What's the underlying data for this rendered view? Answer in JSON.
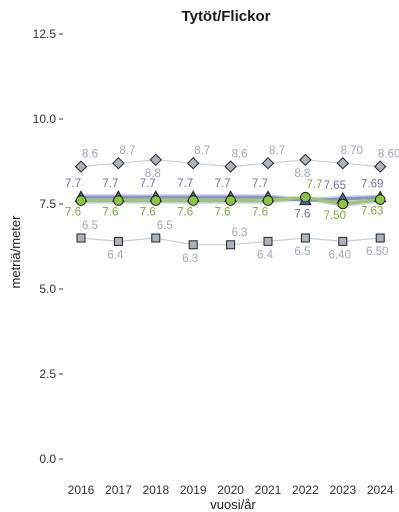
{
  "chart_data": {
    "type": "line",
    "title": "Tytöt/Flickor",
    "xlabel": "vuosi/år",
    "ylabel": "metriä/meter",
    "x": [
      "2016",
      "2017",
      "2018",
      "2019",
      "2020",
      "2021",
      "2022",
      "2023",
      "2024"
    ],
    "ylim": [
      0,
      12.5
    ],
    "yticks": [
      {
        "value": 0.0,
        "label": "0.0"
      },
      {
        "value": 2.5,
        "label": "2.5"
      },
      {
        "value": 5.0,
        "label": "5.0"
      },
      {
        "value": 7.5,
        "label": "7.5"
      },
      {
        "value": 10.0,
        "label": "10.0"
      },
      {
        "value": 12.5,
        "label": "12.5"
      }
    ],
    "grid": false,
    "legend": "none",
    "series": [
      {
        "marker": "diamond",
        "color": "#9aaab8",
        "line_color": "#c8cfd5",
        "values": [
          8.6,
          8.7,
          8.8,
          8.7,
          8.6,
          8.7,
          8.8,
          8.7,
          8.6
        ],
        "labels": [
          "8.6",
          "8.7",
          "8.8",
          "8.7",
          "8.6",
          "8.7",
          "8.8",
          "8.70",
          "8.60"
        ],
        "label_pos": [
          "above",
          "above",
          "below",
          "above",
          "above",
          "above",
          "below",
          "above",
          "above"
        ]
      },
      {
        "marker": "triangle",
        "color": "#6a72b0",
        "line_color": "#8a91cf",
        "values": [
          7.7,
          7.7,
          7.7,
          7.7,
          7.7,
          7.7,
          7.6,
          7.65,
          7.69
        ],
        "labels": [
          "7.7",
          "7.7",
          "7.7",
          "7.7",
          "7.7",
          "7.7",
          "7.6",
          "7.65",
          "7.69"
        ],
        "label_pos": [
          "above",
          "above",
          "above",
          "above",
          "above",
          "above",
          "below",
          "above",
          "above"
        ]
      },
      {
        "marker": "circle",
        "color": "#7aaa3c",
        "line_color": "#9acb5c",
        "values": [
          7.6,
          7.6,
          7.6,
          7.6,
          7.6,
          7.6,
          7.7,
          7.5,
          7.63
        ],
        "labels": [
          "7.6",
          "7.6",
          "7.6",
          "7.6",
          "7.6",
          "7.6",
          "7.7",
          "7.50",
          "7.63"
        ],
        "label_pos": [
          "below",
          "below",
          "below",
          "below",
          "below",
          "below",
          "above",
          "below",
          "below"
        ]
      },
      {
        "marker": "square",
        "color": "#9aaab8",
        "line_color": "#c8cfd5",
        "values": [
          6.5,
          6.4,
          6.5,
          6.3,
          6.3,
          6.4,
          6.5,
          6.4,
          6.5
        ],
        "labels": [
          "6.5",
          "6.4",
          "6.5",
          "6.3",
          "6.3",
          "6.4",
          "6.5",
          "6.40",
          "6.50"
        ],
        "label_pos": [
          "above",
          "below",
          "above",
          "below",
          "above",
          "below",
          "below",
          "below",
          "below"
        ]
      }
    ]
  }
}
